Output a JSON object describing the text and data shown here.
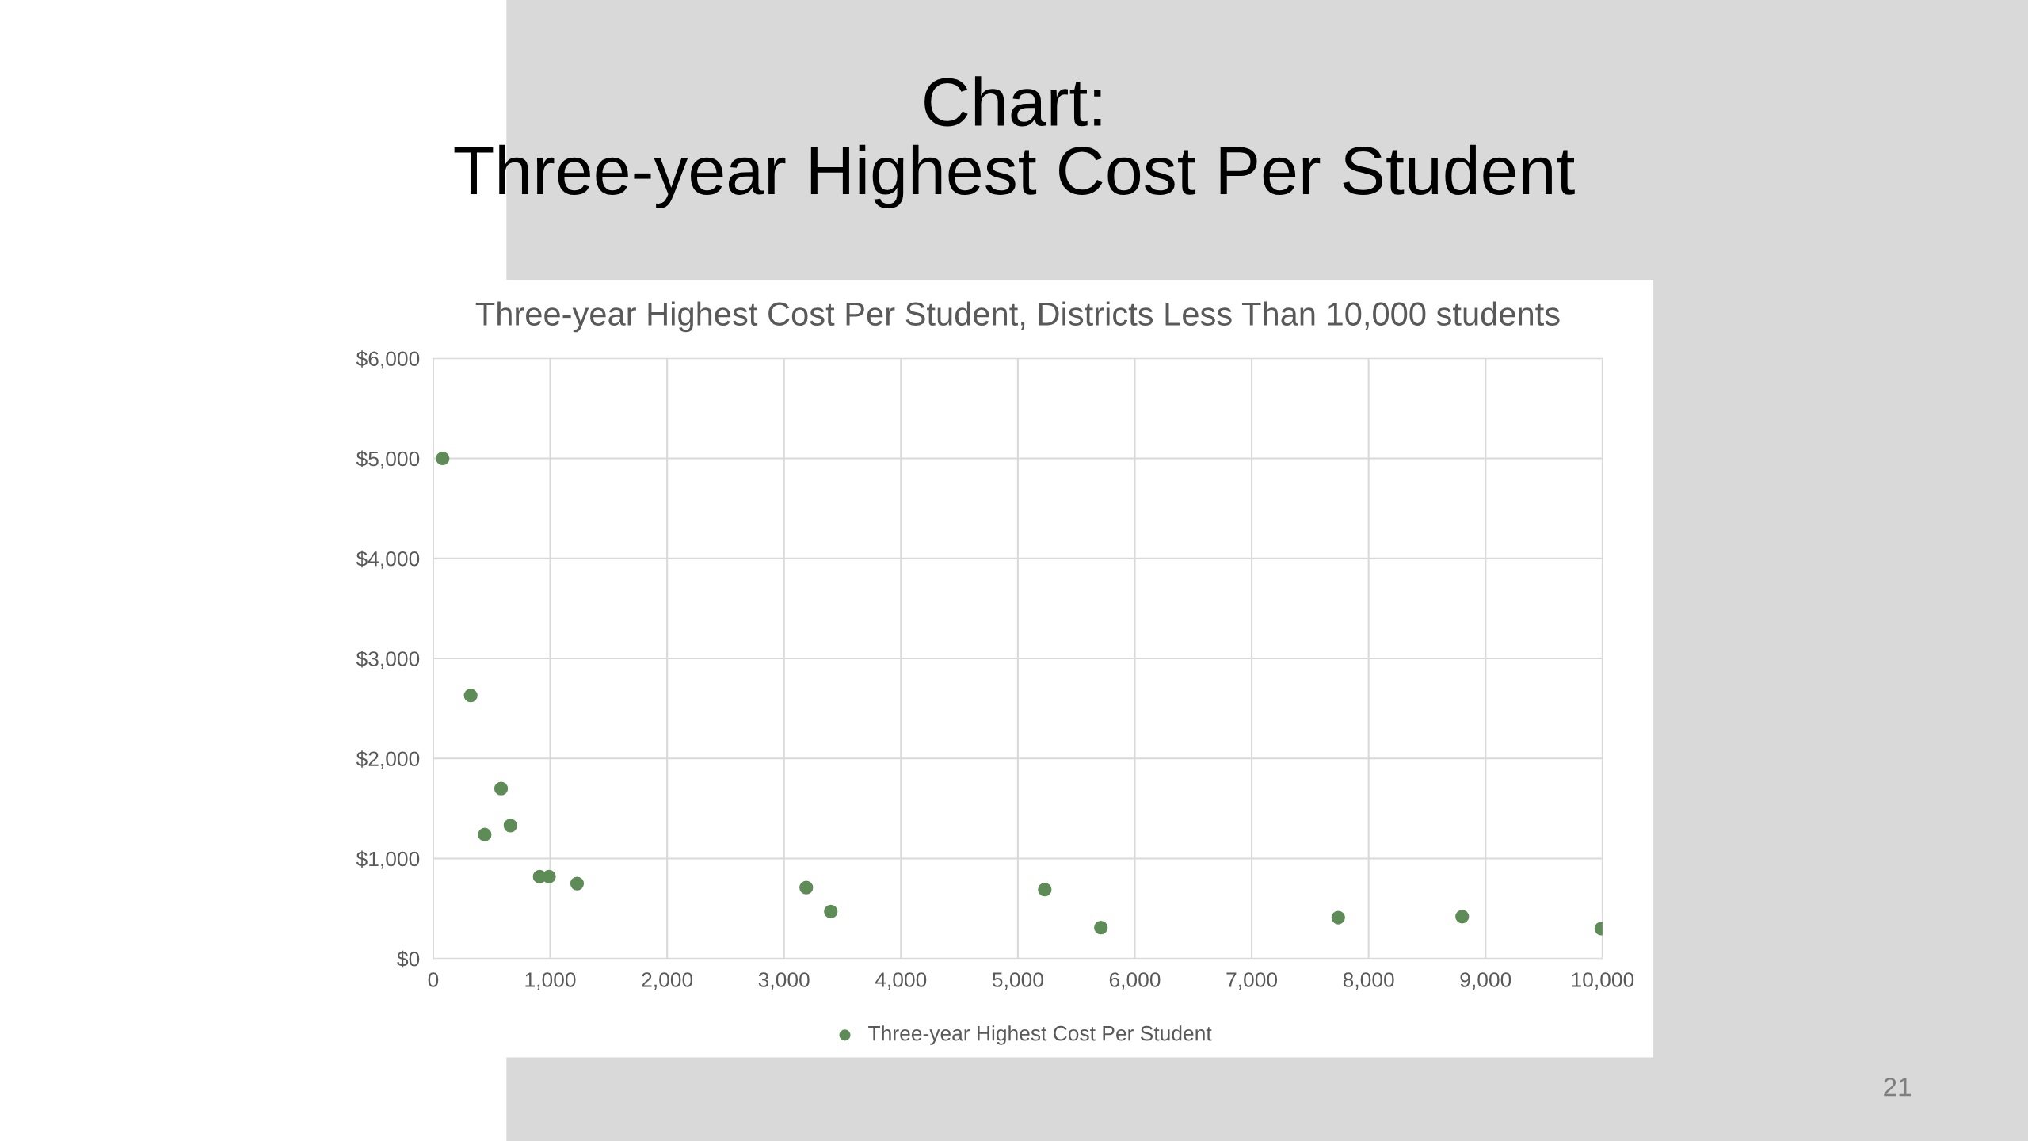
{
  "chart_data": {
    "type": "scatter",
    "title": "Three-year Highest Cost Per Student, Districts Less Than 10,000 students",
    "annotations": [
      "Chart:\nThree-year Highest Cost Per Student",
      "21"
    ],
    "series": [
      {
        "name": "Three-year Highest Cost Per Student",
        "color": "#5e8c57",
        "x": [
          80,
          320,
          440,
          580,
          660,
          910,
          990,
          1230,
          3190,
          3400,
          5230,
          5710,
          7740,
          8800,
          9990
        ],
        "values": [
          5000,
          2630,
          1240,
          1700,
          1330,
          820,
          820,
          750,
          710,
          470,
          690,
          310,
          410,
          420,
          300
        ]
      }
    ],
    "xlim": [
      0,
      10000
    ],
    "xticks": [
      {
        "value": 0,
        "label": "0"
      },
      {
        "value": 1000,
        "label": "1,000"
      },
      {
        "value": 2000,
        "label": "2,000"
      },
      {
        "value": 3000,
        "label": "3,000"
      },
      {
        "value": 4000,
        "label": "4,000"
      },
      {
        "value": 5000,
        "label": "5,000"
      },
      {
        "value": 6000,
        "label": "6,000"
      },
      {
        "value": 7000,
        "label": "7,000"
      },
      {
        "value": 8000,
        "label": "8,000"
      },
      {
        "value": 9000,
        "label": "9,000"
      },
      {
        "value": 10000,
        "label": "10,000"
      }
    ],
    "ylim": [
      0,
      6000
    ],
    "yticks": [
      {
        "value": 0,
        "label": "$0"
      },
      {
        "value": 1000,
        "label": "$1,000"
      },
      {
        "value": 2000,
        "label": "$2,000"
      },
      {
        "value": 3000,
        "label": "$3,000"
      },
      {
        "value": 4000,
        "label": "$4,000"
      },
      {
        "value": 5000,
        "label": "$5,000"
      },
      {
        "value": 6000,
        "label": "$6,000"
      }
    ],
    "grid": true,
    "legend": "bottom",
    "marker": "circle"
  }
}
